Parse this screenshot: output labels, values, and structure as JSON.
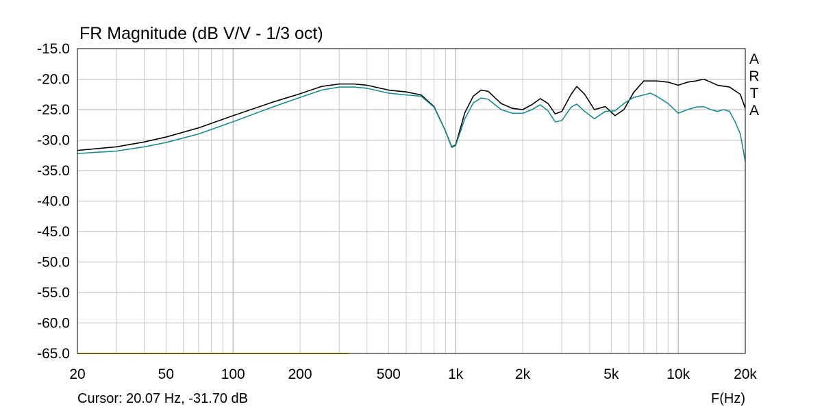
{
  "chart_data": {
    "type": "line",
    "title": "FR Magnitude (dB V/V - 1/3 oct)",
    "xlabel": "F(Hz)",
    "ylabel": "",
    "x_scale": "log",
    "xlim": [
      20,
      20000
    ],
    "ylim": [
      -65,
      -15
    ],
    "grid": true,
    "x_tick_labels": [
      {
        "value": 20,
        "label": "20"
      },
      {
        "value": 50,
        "label": "50"
      },
      {
        "value": 100,
        "label": "100"
      },
      {
        "value": 200,
        "label": "200"
      },
      {
        "value": 500,
        "label": "500"
      },
      {
        "value": 1000,
        "label": "1k"
      },
      {
        "value": 2000,
        "label": "2k"
      },
      {
        "value": 5000,
        "label": "5k"
      },
      {
        "value": 10000,
        "label": "10k"
      },
      {
        "value": 20000,
        "label": "20k"
      }
    ],
    "y_tick_labels": [
      "-15.0",
      "-20.0",
      "-25.0",
      "-30.0",
      "-35.0",
      "-40.0",
      "-45.0",
      "-50.0",
      "-55.0",
      "-60.0",
      "-65.0"
    ],
    "y_tick_values": [
      -15,
      -20,
      -25,
      -30,
      -35,
      -40,
      -45,
      -50,
      -55,
      -60,
      -65
    ],
    "series": [
      {
        "color": "#000000",
        "points": [
          [
            20,
            -31.7
          ],
          [
            30,
            -31.1
          ],
          [
            40,
            -30.3
          ],
          [
            50,
            -29.5
          ],
          [
            70,
            -28.0
          ],
          [
            100,
            -26.0
          ],
          [
            150,
            -23.8
          ],
          [
            200,
            -22.4
          ],
          [
            250,
            -21.2
          ],
          [
            300,
            -20.8
          ],
          [
            350,
            -20.8
          ],
          [
            400,
            -21.0
          ],
          [
            500,
            -21.8
          ],
          [
            600,
            -22.1
          ],
          [
            700,
            -22.6
          ],
          [
            800,
            -24.5
          ],
          [
            900,
            -28.5
          ],
          [
            960,
            -31.1
          ],
          [
            1000,
            -30.8
          ],
          [
            1100,
            -25.5
          ],
          [
            1200,
            -22.8
          ],
          [
            1300,
            -21.8
          ],
          [
            1400,
            -22.0
          ],
          [
            1600,
            -24.0
          ],
          [
            1800,
            -24.8
          ],
          [
            2000,
            -25.0
          ],
          [
            2200,
            -24.2
          ],
          [
            2400,
            -23.2
          ],
          [
            2600,
            -24.0
          ],
          [
            2800,
            -25.7
          ],
          [
            3000,
            -25.3
          ],
          [
            3300,
            -22.5
          ],
          [
            3500,
            -21.2
          ],
          [
            3800,
            -22.5
          ],
          [
            4200,
            -25.0
          ],
          [
            4700,
            -24.5
          ],
          [
            5200,
            -26.0
          ],
          [
            5700,
            -25.0
          ],
          [
            6300,
            -22.2
          ],
          [
            7000,
            -20.3
          ],
          [
            8000,
            -20.3
          ],
          [
            9000,
            -20.5
          ],
          [
            10000,
            -21.0
          ],
          [
            11000,
            -20.5
          ],
          [
            12000,
            -20.3
          ],
          [
            13000,
            -20.0
          ],
          [
            14000,
            -20.5
          ],
          [
            15000,
            -21.0
          ],
          [
            17000,
            -21.3
          ],
          [
            19000,
            -22.5
          ],
          [
            20000,
            -24.8
          ]
        ]
      },
      {
        "color": "#1a8a8c",
        "points": [
          [
            20,
            -32.2
          ],
          [
            30,
            -31.8
          ],
          [
            40,
            -31.1
          ],
          [
            50,
            -30.4
          ],
          [
            70,
            -29.0
          ],
          [
            100,
            -27.0
          ],
          [
            150,
            -24.6
          ],
          [
            200,
            -23.0
          ],
          [
            250,
            -21.8
          ],
          [
            300,
            -21.3
          ],
          [
            350,
            -21.3
          ],
          [
            400,
            -21.5
          ],
          [
            500,
            -22.3
          ],
          [
            600,
            -22.6
          ],
          [
            700,
            -22.8
          ],
          [
            800,
            -24.6
          ],
          [
            900,
            -28.5
          ],
          [
            960,
            -31.2
          ],
          [
            1000,
            -30.9
          ],
          [
            1100,
            -26.5
          ],
          [
            1200,
            -23.9
          ],
          [
            1300,
            -23.1
          ],
          [
            1400,
            -23.3
          ],
          [
            1600,
            -25.0
          ],
          [
            1800,
            -25.6
          ],
          [
            2000,
            -25.6
          ],
          [
            2200,
            -25.0
          ],
          [
            2400,
            -24.2
          ],
          [
            2600,
            -25.2
          ],
          [
            2800,
            -27.0
          ],
          [
            3000,
            -26.8
          ],
          [
            3300,
            -24.6
          ],
          [
            3500,
            -24.1
          ],
          [
            3800,
            -25.3
          ],
          [
            4200,
            -26.5
          ],
          [
            4700,
            -25.3
          ],
          [
            5200,
            -25.2
          ],
          [
            5700,
            -24.0
          ],
          [
            6300,
            -23.0
          ],
          [
            7000,
            -22.6
          ],
          [
            7500,
            -22.3
          ],
          [
            8000,
            -22.8
          ],
          [
            9000,
            -24.0
          ],
          [
            10000,
            -25.6
          ],
          [
            11000,
            -25.0
          ],
          [
            12000,
            -24.6
          ],
          [
            13000,
            -24.5
          ],
          [
            14000,
            -25.0
          ],
          [
            15000,
            -25.3
          ],
          [
            16000,
            -25.0
          ],
          [
            17000,
            -25.3
          ],
          [
            18000,
            -27.0
          ],
          [
            19000,
            -29.0
          ],
          [
            20000,
            -33.5
          ]
        ]
      },
      {
        "color": "#c8c832",
        "points": [
          [
            20,
            -65
          ],
          [
            330,
            -65
          ]
        ]
      }
    ],
    "side_label": [
      "A",
      "R",
      "T",
      "A"
    ],
    "cursor_text": "Cursor: 20.07 Hz, -31.70 dB"
  },
  "colors": {
    "grid": "#c8c8c8",
    "frame": "#000000",
    "background": "#ffffff"
  }
}
